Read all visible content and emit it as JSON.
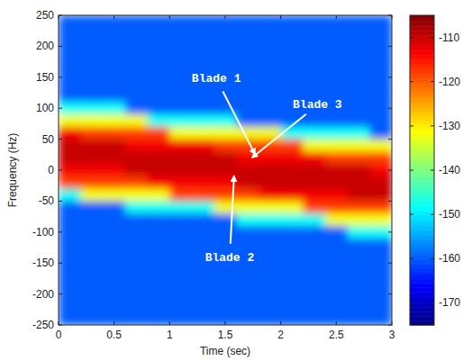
{
  "chart_data": {
    "type": "heatmap",
    "x_label": "Time (sec)",
    "y_label": "Frequency (Hz)",
    "xlim": [
      0,
      3
    ],
    "ylim": [
      -250,
      250
    ],
    "xticks": [
      0,
      0.5,
      1,
      1.5,
      2,
      2.5,
      3
    ],
    "yticks": [
      -250,
      -200,
      -150,
      -100,
      -50,
      0,
      50,
      100,
      150,
      200,
      250
    ],
    "x": [
      0.1,
      0.3,
      0.5,
      0.7,
      0.9,
      1.1,
      1.3,
      1.5,
      1.7,
      1.9,
      2.1,
      2.3,
      2.5,
      2.7,
      2.9
    ],
    "y": [
      240,
      220,
      200,
      180,
      160,
      140,
      120,
      100,
      80,
      60,
      40,
      20,
      0,
      -20,
      -40,
      -60,
      -80,
      -100,
      -120,
      -140,
      -160,
      -180,
      -200,
      -220,
      -240
    ],
    "values": [
      [
        -160,
        -160,
        -160,
        -160,
        -160,
        -160,
        -160,
        -160,
        -160,
        -160,
        -160,
        -160,
        -160,
        -160,
        -160
      ],
      [
        -160,
        -160,
        -160,
        -160,
        -160,
        -160,
        -160,
        -160,
        -160,
        -160,
        -160,
        -160,
        -160,
        -160,
        -160
      ],
      [
        -160,
        -160,
        -160,
        -160,
        -160,
        -160,
        -160,
        -160,
        -160,
        -160,
        -160,
        -160,
        -160,
        -160,
        -160
      ],
      [
        -160,
        -160,
        -160,
        -160,
        -160,
        -160,
        -160,
        -160,
        -160,
        -160,
        -160,
        -160,
        -160,
        -160,
        -160
      ],
      [
        -160,
        -160,
        -160,
        -160,
        -160,
        -160,
        -160,
        -160,
        -160,
        -160,
        -160,
        -160,
        -160,
        -160,
        -160
      ],
      [
        -160,
        -160,
        -160,
        -160,
        -160,
        -160,
        -160,
        -160,
        -160,
        -160,
        -160,
        -160,
        -160,
        -160,
        -160
      ],
      [
        -160,
        -160,
        -160,
        -160,
        -160,
        -160,
        -160,
        -160,
        -160,
        -160,
        -160,
        -160,
        -160,
        -160,
        -160
      ],
      [
        -148,
        -148,
        -148,
        -160,
        -160,
        -160,
        -160,
        -160,
        -160,
        -160,
        -160,
        -160,
        -160,
        -160,
        -160
      ],
      [
        -132,
        -132,
        -132,
        -132,
        -148,
        -148,
        -148,
        -148,
        -160,
        -160,
        -160,
        -160,
        -160,
        -160,
        -160
      ],
      [
        -113,
        -118,
        -118,
        -118,
        -118,
        -132,
        -132,
        -132,
        -132,
        -132,
        -148,
        -148,
        -148,
        -148,
        -160
      ],
      [
        -110,
        -110,
        -110,
        -113,
        -113,
        -113,
        -113,
        -118,
        -118,
        -118,
        -118,
        -132,
        -132,
        -132,
        -132
      ],
      [
        -110,
        -110,
        -110,
        -110,
        -110,
        -110,
        -110,
        -110,
        -113,
        -113,
        -113,
        -113,
        -118,
        -118,
        -118
      ],
      [
        -113,
        -113,
        -113,
        -110,
        -110,
        -110,
        -110,
        -110,
        -110,
        -110,
        -110,
        -110,
        -110,
        -110,
        -113
      ],
      [
        -118,
        -118,
        -118,
        -118,
        -113,
        -113,
        -113,
        -113,
        -110,
        -110,
        -110,
        -110,
        -110,
        -110,
        -110
      ],
      [
        -148,
        -132,
        -132,
        -132,
        -132,
        -118,
        -118,
        -118,
        -118,
        -113,
        -113,
        -113,
        -113,
        -110,
        -110
      ],
      [
        -160,
        -160,
        -160,
        -148,
        -148,
        -148,
        -148,
        -132,
        -132,
        -132,
        -132,
        -118,
        -118,
        -118,
        -118
      ],
      [
        -160,
        -160,
        -160,
        -160,
        -160,
        -160,
        -160,
        -160,
        -148,
        -148,
        -148,
        -148,
        -132,
        -132,
        -132
      ],
      [
        -160,
        -160,
        -160,
        -160,
        -160,
        -160,
        -160,
        -160,
        -160,
        -160,
        -160,
        -160,
        -160,
        -148,
        -148
      ],
      [
        -160,
        -160,
        -160,
        -160,
        -160,
        -160,
        -160,
        -160,
        -160,
        -160,
        -160,
        -160,
        -160,
        -160,
        -160
      ],
      [
        -160,
        -160,
        -160,
        -160,
        -160,
        -160,
        -160,
        -160,
        -160,
        -160,
        -160,
        -160,
        -160,
        -160,
        -160
      ],
      [
        -160,
        -160,
        -160,
        -160,
        -160,
        -160,
        -160,
        -160,
        -160,
        -160,
        -160,
        -160,
        -160,
        -160,
        -160
      ],
      [
        -160,
        -160,
        -160,
        -160,
        -160,
        -160,
        -160,
        -160,
        -160,
        -160,
        -160,
        -160,
        -160,
        -160,
        -160
      ],
      [
        -160,
        -160,
        -160,
        -160,
        -160,
        -160,
        -160,
        -160,
        -160,
        -160,
        -160,
        -160,
        -160,
        -160,
        -160
      ],
      [
        -160,
        -160,
        -160,
        -160,
        -160,
        -160,
        -160,
        -160,
        -160,
        -160,
        -160,
        -160,
        -160,
        -160,
        -160
      ],
      [
        -160,
        -160,
        -160,
        -160,
        -160,
        -160,
        -160,
        -160,
        -160,
        -160,
        -160,
        -160,
        -160,
        -160,
        -160
      ]
    ],
    "colorbar": {
      "range": [
        -175,
        -105
      ],
      "ticks": [
        -170,
        -160,
        -150,
        -140,
        -130,
        -120,
        -110
      ]
    },
    "annotations": [
      {
        "text": "Blade 1",
        "xy": [
          1.77,
          25
        ],
        "xytext": [
          1.42,
          148
        ]
      },
      {
        "text": "Blade 3",
        "xy": [
          1.74,
          20
        ],
        "xytext": [
          2.33,
          105
        ]
      },
      {
        "text": "Blade 2",
        "xy": [
          1.58,
          -9
        ],
        "xytext": [
          1.54,
          -142
        ]
      }
    ]
  }
}
